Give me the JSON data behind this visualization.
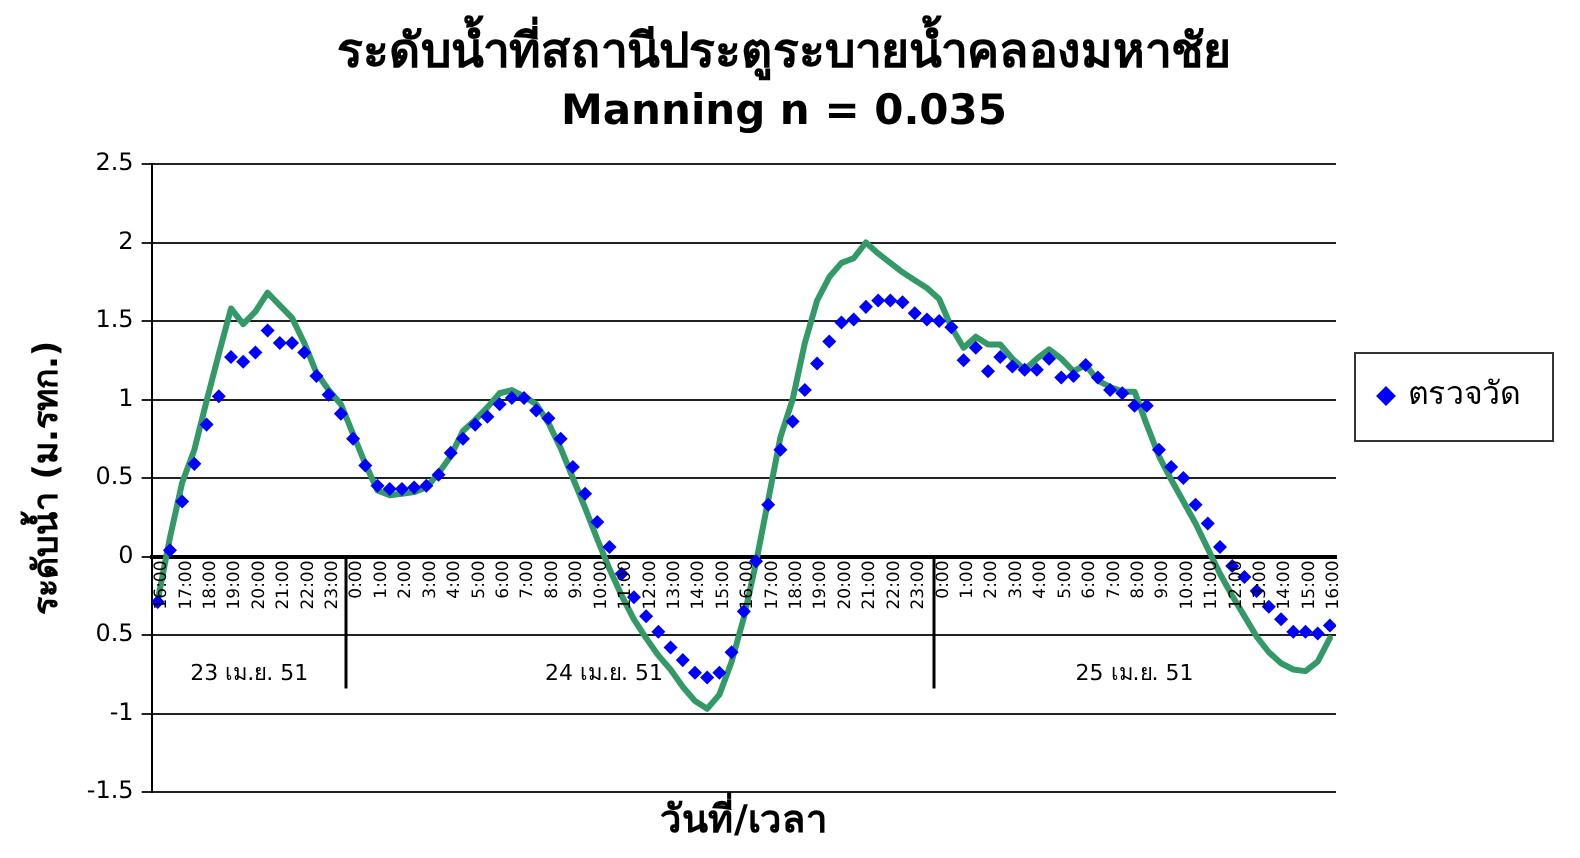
{
  "chart_data": {
    "type": "line",
    "title": "ระดับน้ำที่สถานีประตูระบายน้ำคลองมหาชัย",
    "subtitle": "Manning n = 0.035",
    "xlabel": "วันที่/เวลา",
    "ylabel": "ระดับน้ำ (ม.รทก.)",
    "x": [
      "--04-23T16:00",
      "--04-23T16:30",
      "--04-23T17:00",
      "--04-23T17:30",
      "--04-23T18:00",
      "--04-23T18:30",
      "--04-23T19:00",
      "--04-23T19:30",
      "--04-23T20:00",
      "--04-23T20:30",
      "--04-23T21:00",
      "--04-23T21:30",
      "--04-23T22:00",
      "--04-23T22:30",
      "--04-23T23:00",
      "--04-23T23:30",
      "--04-24T00:00",
      "--04-24T00:30",
      "--04-24T01:00",
      "--04-24T01:30",
      "--04-24T02:00",
      "--04-24T02:30",
      "--04-24T03:00",
      "--04-24T03:30",
      "--04-24T04:00",
      "--04-24T04:30",
      "--04-24T05:00",
      "--04-24T05:30",
      "--04-24T06:00",
      "--04-24T06:30",
      "--04-24T07:00",
      "--04-24T07:30",
      "--04-24T08:00",
      "--04-24T08:30",
      "--04-24T09:00",
      "--04-24T09:30",
      "--04-24T10:00",
      "--04-24T10:30",
      "--04-24T11:00",
      "--04-24T11:30",
      "--04-24T12:00",
      "--04-24T12:30",
      "--04-24T13:00",
      "--04-24T13:30",
      "--04-24T14:00",
      "--04-24T14:30",
      "--04-24T15:00",
      "--04-24T15:30",
      "--04-24T16:00",
      "--04-24T16:30",
      "--04-24T17:00",
      "--04-24T17:30",
      "--04-24T18:00",
      "--04-24T18:30",
      "--04-24T19:00",
      "--04-24T19:30",
      "--04-24T20:00",
      "--04-24T20:30",
      "--04-24T21:00",
      "--04-24T21:30",
      "--04-24T22:00",
      "--04-24T22:30",
      "--04-24T23:00",
      "--04-24T23:30",
      "--04-25T00:00",
      "--04-25T00:30",
      "--04-25T01:00",
      "--04-25T01:30",
      "--04-25T02:00",
      "--04-25T02:30",
      "--04-25T03:00",
      "--04-25T03:30",
      "--04-25T04:00",
      "--04-25T04:30",
      "--04-25T05:00",
      "--04-25T05:30",
      "--04-25T06:00",
      "--04-25T06:30",
      "--04-25T07:00",
      "--04-25T07:30",
      "--04-25T08:00",
      "--04-25T08:30",
      "--04-25T09:00",
      "--04-25T09:30",
      "--04-25T10:00",
      "--04-25T10:30",
      "--04-25T11:00",
      "--04-25T11:30",
      "--04-25T12:00",
      "--04-25T12:30",
      "--04-25T13:00",
      "--04-25T13:30",
      "--04-25T14:00",
      "--04-25T14:30",
      "--04-25T15:00",
      "--04-25T15:30",
      "--04-25T16:00"
    ],
    "series": [
      {
        "name": "ตรวจวัด",
        "type": "scatter",
        "marker": "diamond",
        "color": "#0000ff",
        "values": [
          -0.29,
          0.04,
          0.35,
          0.59,
          0.84,
          1.02,
          1.27,
          1.24,
          1.3,
          1.44,
          1.36,
          1.36,
          1.3,
          1.15,
          1.03,
          0.91,
          0.75,
          0.58,
          0.45,
          0.43,
          0.43,
          0.44,
          0.45,
          0.52,
          0.66,
          0.75,
          0.84,
          0.89,
          0.97,
          1.01,
          1.01,
          0.93,
          0.88,
          0.75,
          0.57,
          0.4,
          0.22,
          0.06,
          -0.11,
          -0.26,
          -0.38,
          -0.48,
          -0.58,
          -0.66,
          -0.74,
          -0.77,
          -0.74,
          -0.61,
          -0.35,
          -0.03,
          0.33,
          0.68,
          0.86,
          1.06,
          1.23,
          1.37,
          1.49,
          1.51,
          1.59,
          1.63,
          1.63,
          1.62,
          1.55,
          1.51,
          1.5,
          1.46,
          1.25,
          1.33,
          1.18,
          1.27,
          1.21,
          1.19,
          1.19,
          1.26,
          1.14,
          1.15,
          1.22,
          1.14,
          1.06,
          1.04,
          0.96,
          0.96,
          0.68,
          0.57,
          0.5,
          0.33,
          0.21,
          0.06,
          -0.06,
          -0.13,
          -0.22,
          -0.32,
          -0.4,
          -0.48,
          -0.48,
          -0.49,
          -0.44
        ]
      },
      {
        "type": "line",
        "marker": "none",
        "color": "#339966",
        "values": [
          -0.28,
          0.12,
          0.47,
          0.68,
          0.99,
          1.29,
          1.58,
          1.48,
          1.56,
          1.68,
          1.6,
          1.52,
          1.36,
          1.17,
          1.06,
          0.97,
          0.78,
          0.59,
          0.42,
          0.39,
          0.4,
          0.41,
          0.44,
          0.53,
          0.64,
          0.8,
          0.87,
          0.95,
          1.04,
          1.06,
          1.02,
          0.97,
          0.85,
          0.69,
          0.5,
          0.31,
          0.11,
          -0.08,
          -0.25,
          -0.4,
          -0.52,
          -0.63,
          -0.72,
          -0.83,
          -0.92,
          -0.97,
          -0.88,
          -0.67,
          -0.39,
          -0.04,
          0.36,
          0.76,
          1.0,
          1.36,
          1.63,
          1.78,
          1.87,
          1.9,
          2.0,
          1.93,
          1.87,
          1.81,
          1.76,
          1.71,
          1.64,
          1.46,
          1.33,
          1.4,
          1.35,
          1.35,
          1.26,
          1.19,
          1.26,
          1.32,
          1.26,
          1.18,
          1.22,
          1.12,
          1.08,
          1.05,
          1.05,
          0.84,
          0.64,
          0.49,
          0.35,
          0.21,
          0.05,
          -0.11,
          -0.25,
          -0.38,
          -0.51,
          -0.61,
          -0.68,
          -0.72,
          -0.73,
          -0.67,
          -0.52
        ]
      }
    ],
    "annotations": [
      "23 เม.ย. 51",
      "24 เม.ย. 51",
      "25 เม.ย. 51"
    ],
    "ref_lines": [
      {
        "axis": "x",
        "value": "--04-23T23:45",
        "color": "#000000"
      },
      {
        "axis": "x",
        "value": "--04-24T23:45",
        "color": "#000000"
      }
    ],
    "xlim": [
      "--04-23T15:45",
      "--04-25T16:15"
    ],
    "xticks": [
      {
        "value": "--04-23T16:00",
        "label": "16:00"
      },
      {
        "value": "--04-23T17:00",
        "label": "17:00"
      },
      {
        "value": "--04-23T18:00",
        "label": "18:00"
      },
      {
        "value": "--04-23T19:00",
        "label": "19:00"
      },
      {
        "value": "--04-23T20:00",
        "label": "20:00"
      },
      {
        "value": "--04-23T21:00",
        "label": "21:00"
      },
      {
        "value": "--04-23T22:00",
        "label": "22:00"
      },
      {
        "value": "--04-23T23:00",
        "label": "23:00"
      },
      {
        "value": "--04-24T00:00",
        "label": "0:00"
      },
      {
        "value": "--04-24T01:00",
        "label": "1:00"
      },
      {
        "value": "--04-24T02:00",
        "label": "2:00"
      },
      {
        "value": "--04-24T03:00",
        "label": "3:00"
      },
      {
        "value": "--04-24T04:00",
        "label": "4:00"
      },
      {
        "value": "--04-24T05:00",
        "label": "5:00"
      },
      {
        "value": "--04-24T06:00",
        "label": "6:00"
      },
      {
        "value": "--04-24T07:00",
        "label": "7:00"
      },
      {
        "value": "--04-24T08:00",
        "label": "8:00"
      },
      {
        "value": "--04-24T09:00",
        "label": "9:00"
      },
      {
        "value": "--04-24T10:00",
        "label": "10:00"
      },
      {
        "value": "--04-24T11:00",
        "label": "11:00"
      },
      {
        "value": "--04-24T12:00",
        "label": "12:00"
      },
      {
        "value": "--04-24T13:00",
        "label": "13:00"
      },
      {
        "value": "--04-24T14:00",
        "label": "14:00"
      },
      {
        "value": "--04-24T15:00",
        "label": "15:00"
      },
      {
        "value": "--04-24T16:00",
        "label": "16:00"
      },
      {
        "value": "--04-24T17:00",
        "label": "17:00"
      },
      {
        "value": "--04-24T18:00",
        "label": "18:00"
      },
      {
        "value": "--04-24T19:00",
        "label": "19:00"
      },
      {
        "value": "--04-24T20:00",
        "label": "20:00"
      },
      {
        "value": "--04-24T21:00",
        "label": "21:00"
      },
      {
        "value": "--04-24T22:00",
        "label": "22:00"
      },
      {
        "value": "--04-24T23:00",
        "label": "23:00"
      },
      {
        "value": "--04-25T00:00",
        "label": "0:00"
      },
      {
        "value": "--04-25T01:00",
        "label": "1:00"
      },
      {
        "value": "--04-25T02:00",
        "label": "2:00"
      },
      {
        "value": "--04-25T03:00",
        "label": "3:00"
      },
      {
        "value": "--04-25T04:00",
        "label": "4:00"
      },
      {
        "value": "--04-25T05:00",
        "label": "5:00"
      },
      {
        "value": "--04-25T06:00",
        "label": "6:00"
      },
      {
        "value": "--04-25T07:00",
        "label": "7:00"
      },
      {
        "value": "--04-25T08:00",
        "label": "8:00"
      },
      {
        "value": "--04-25T09:00",
        "label": "9:00"
      },
      {
        "value": "--04-25T10:00",
        "label": "10:00"
      },
      {
        "value": "--04-25T11:00",
        "label": "11:00"
      },
      {
        "value": "--04-25T12:00",
        "label": "12:00"
      },
      {
        "value": "--04-25T13:00",
        "label": "13:00"
      },
      {
        "value": "--04-25T14:00",
        "label": "14:00"
      },
      {
        "value": "--04-25T15:00",
        "label": "15:00"
      },
      {
        "value": "--04-25T16:00",
        "label": "16:00"
      }
    ],
    "ylim": [
      -1.5,
      2.5
    ],
    "yticks": [
      -1.5,
      -1,
      {
        "value": -0.5,
        "label": "0.5"
      },
      0,
      0.5,
      1,
      1.5,
      2,
      2.5
    ],
    "grid": "y",
    "legend": "right"
  }
}
